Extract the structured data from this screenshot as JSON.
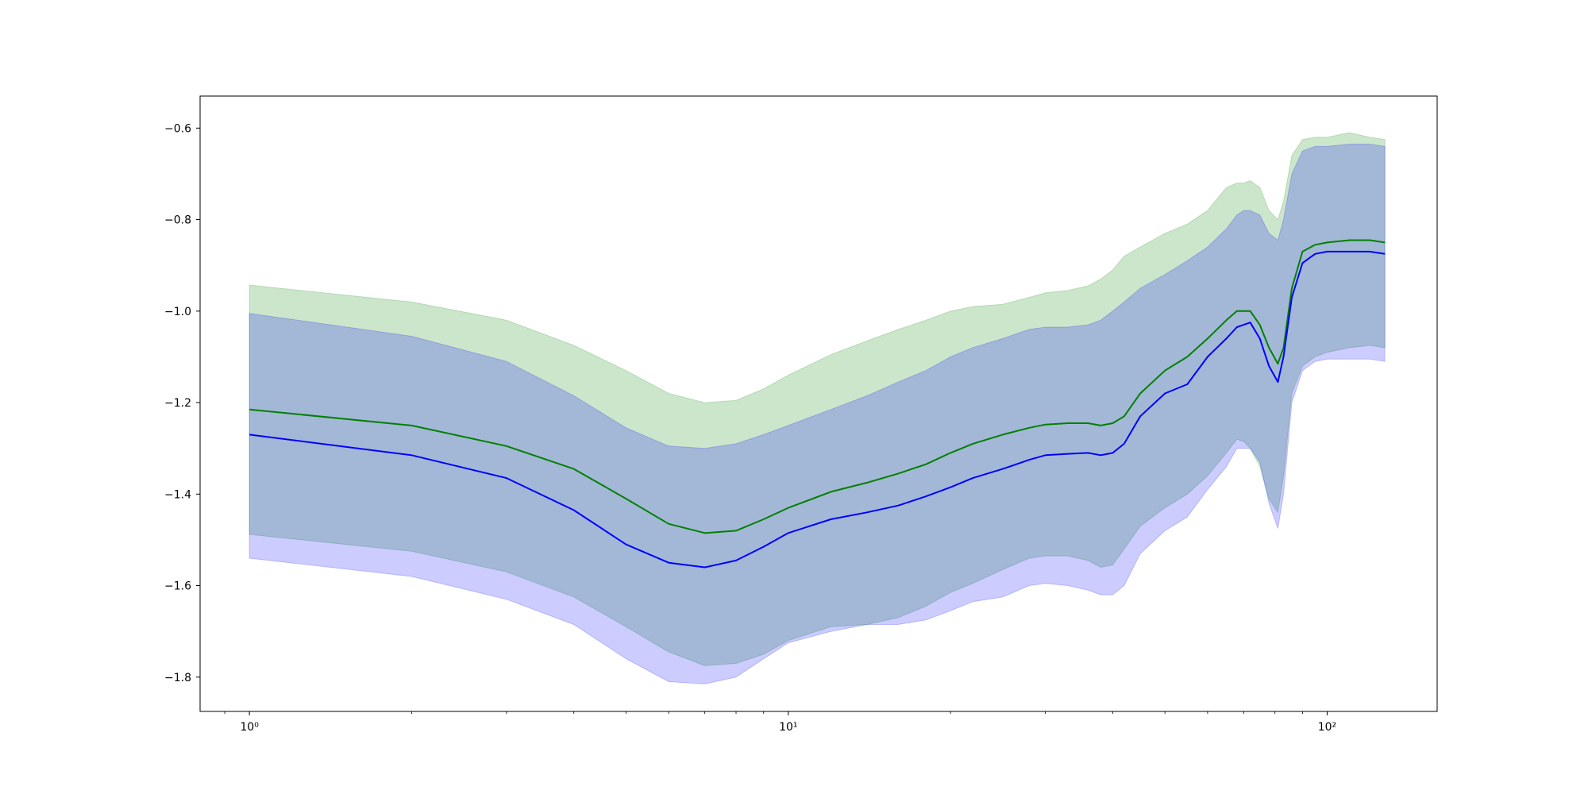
{
  "chart_data": {
    "type": "line",
    "title": "",
    "xlabel": "",
    "ylabel": "",
    "xscale": "log",
    "xlim": [
      0.81,
      160
    ],
    "ylim": [
      -1.875,
      -0.53
    ],
    "grid": false,
    "x_ticks": [
      {
        "value": 1,
        "label": "10⁰"
      },
      {
        "value": 10,
        "label": "10¹"
      },
      {
        "value": 100,
        "label": "10²"
      }
    ],
    "y_ticks": [
      {
        "value": -0.6,
        "label": "−0.6"
      },
      {
        "value": -0.8,
        "label": "−0.8"
      },
      {
        "value": -1.0,
        "label": "−1.0"
      },
      {
        "value": -1.2,
        "label": "−1.2"
      },
      {
        "value": -1.4,
        "label": "−1.4"
      },
      {
        "value": -1.6,
        "label": "−1.6"
      },
      {
        "value": -1.8,
        "label": "−1.8"
      }
    ],
    "colors": {
      "green_line": "#008000",
      "blue_line": "#0000ff",
      "green_band": "#008000",
      "blue_band": "#0000ff",
      "band_opacity": 0.2
    },
    "series": [
      {
        "color_key": "green",
        "x": [
          1,
          2,
          3,
          4,
          5,
          6,
          7,
          8,
          9,
          10,
          12,
          14,
          16,
          18,
          20,
          22,
          25,
          28,
          30,
          33,
          36,
          38,
          40,
          42,
          45,
          50,
          55,
          60,
          65,
          68,
          70,
          72,
          75,
          78,
          81,
          83,
          86,
          90,
          95,
          100,
          110,
          120,
          128
        ],
        "mean": [
          -1.215,
          -1.25,
          -1.295,
          -1.345,
          -1.41,
          -1.465,
          -1.485,
          -1.48,
          -1.455,
          -1.43,
          -1.395,
          -1.375,
          -1.355,
          -1.335,
          -1.31,
          -1.29,
          -1.27,
          -1.255,
          -1.248,
          -1.245,
          -1.245,
          -1.25,
          -1.245,
          -1.23,
          -1.18,
          -1.13,
          -1.1,
          -1.06,
          -1.02,
          -1.0,
          -1.0,
          -1.0,
          -1.03,
          -1.08,
          -1.115,
          -1.08,
          -0.95,
          -0.87,
          -0.855,
          -0.85,
          -0.845,
          -0.845,
          -0.85
        ],
        "upper": [
          -0.943,
          -0.98,
          -1.02,
          -1.075,
          -1.13,
          -1.18,
          -1.2,
          -1.195,
          -1.17,
          -1.14,
          -1.095,
          -1.065,
          -1.04,
          -1.02,
          -1.0,
          -0.99,
          -0.985,
          -0.97,
          -0.96,
          -0.955,
          -0.945,
          -0.93,
          -0.91,
          -0.88,
          -0.86,
          -0.83,
          -0.81,
          -0.78,
          -0.73,
          -0.72,
          -0.72,
          -0.715,
          -0.73,
          -0.78,
          -0.8,
          -0.76,
          -0.66,
          -0.625,
          -0.62,
          -0.62,
          -0.61,
          -0.62,
          -0.625
        ],
        "lower": [
          -1.488,
          -1.525,
          -1.57,
          -1.625,
          -1.69,
          -1.745,
          -1.775,
          -1.77,
          -1.75,
          -1.72,
          -1.69,
          -1.685,
          -1.67,
          -1.645,
          -1.615,
          -1.595,
          -1.565,
          -1.54,
          -1.535,
          -1.535,
          -1.545,
          -1.56,
          -1.555,
          -1.52,
          -1.47,
          -1.43,
          -1.4,
          -1.36,
          -1.31,
          -1.28,
          -1.285,
          -1.3,
          -1.34,
          -1.41,
          -1.44,
          -1.36,
          -1.18,
          -1.12,
          -1.1,
          -1.09,
          -1.08,
          -1.075,
          -1.08
        ]
      },
      {
        "color_key": "blue",
        "x": [
          1,
          2,
          3,
          4,
          5,
          6,
          7,
          8,
          9,
          10,
          12,
          14,
          16,
          18,
          20,
          22,
          25,
          28,
          30,
          33,
          36,
          38,
          40,
          42,
          45,
          50,
          55,
          60,
          65,
          68,
          70,
          72,
          75,
          78,
          81,
          83,
          86,
          90,
          95,
          100,
          110,
          120,
          128
        ],
        "mean": [
          -1.27,
          -1.315,
          -1.365,
          -1.435,
          -1.51,
          -1.55,
          -1.56,
          -1.545,
          -1.515,
          -1.485,
          -1.455,
          -1.44,
          -1.425,
          -1.405,
          -1.385,
          -1.365,
          -1.345,
          -1.325,
          -1.315,
          -1.312,
          -1.31,
          -1.315,
          -1.31,
          -1.29,
          -1.23,
          -1.18,
          -1.16,
          -1.1,
          -1.06,
          -1.035,
          -1.03,
          -1.025,
          -1.06,
          -1.12,
          -1.155,
          -1.1,
          -0.97,
          -0.895,
          -0.875,
          -0.87,
          -0.87,
          -0.87,
          -0.875
        ],
        "upper": [
          -1.005,
          -1.055,
          -1.11,
          -1.185,
          -1.255,
          -1.295,
          -1.3,
          -1.29,
          -1.27,
          -1.25,
          -1.215,
          -1.185,
          -1.155,
          -1.13,
          -1.1,
          -1.08,
          -1.06,
          -1.04,
          -1.035,
          -1.035,
          -1.03,
          -1.02,
          -1.0,
          -0.98,
          -0.95,
          -0.92,
          -0.89,
          -0.86,
          -0.82,
          -0.79,
          -0.78,
          -0.78,
          -0.79,
          -0.83,
          -0.845,
          -0.8,
          -0.7,
          -0.65,
          -0.64,
          -0.64,
          -0.635,
          -0.635,
          -0.64
        ],
        "lower": [
          -1.54,
          -1.58,
          -1.63,
          -1.685,
          -1.76,
          -1.81,
          -1.815,
          -1.8,
          -1.76,
          -1.725,
          -1.7,
          -1.685,
          -1.685,
          -1.675,
          -1.655,
          -1.635,
          -1.625,
          -1.6,
          -1.595,
          -1.6,
          -1.61,
          -1.62,
          -1.62,
          -1.6,
          -1.53,
          -1.48,
          -1.45,
          -1.39,
          -1.34,
          -1.3,
          -1.3,
          -1.3,
          -1.33,
          -1.42,
          -1.475,
          -1.4,
          -1.2,
          -1.13,
          -1.11,
          -1.105,
          -1.105,
          -1.105,
          -1.11
        ]
      }
    ]
  }
}
